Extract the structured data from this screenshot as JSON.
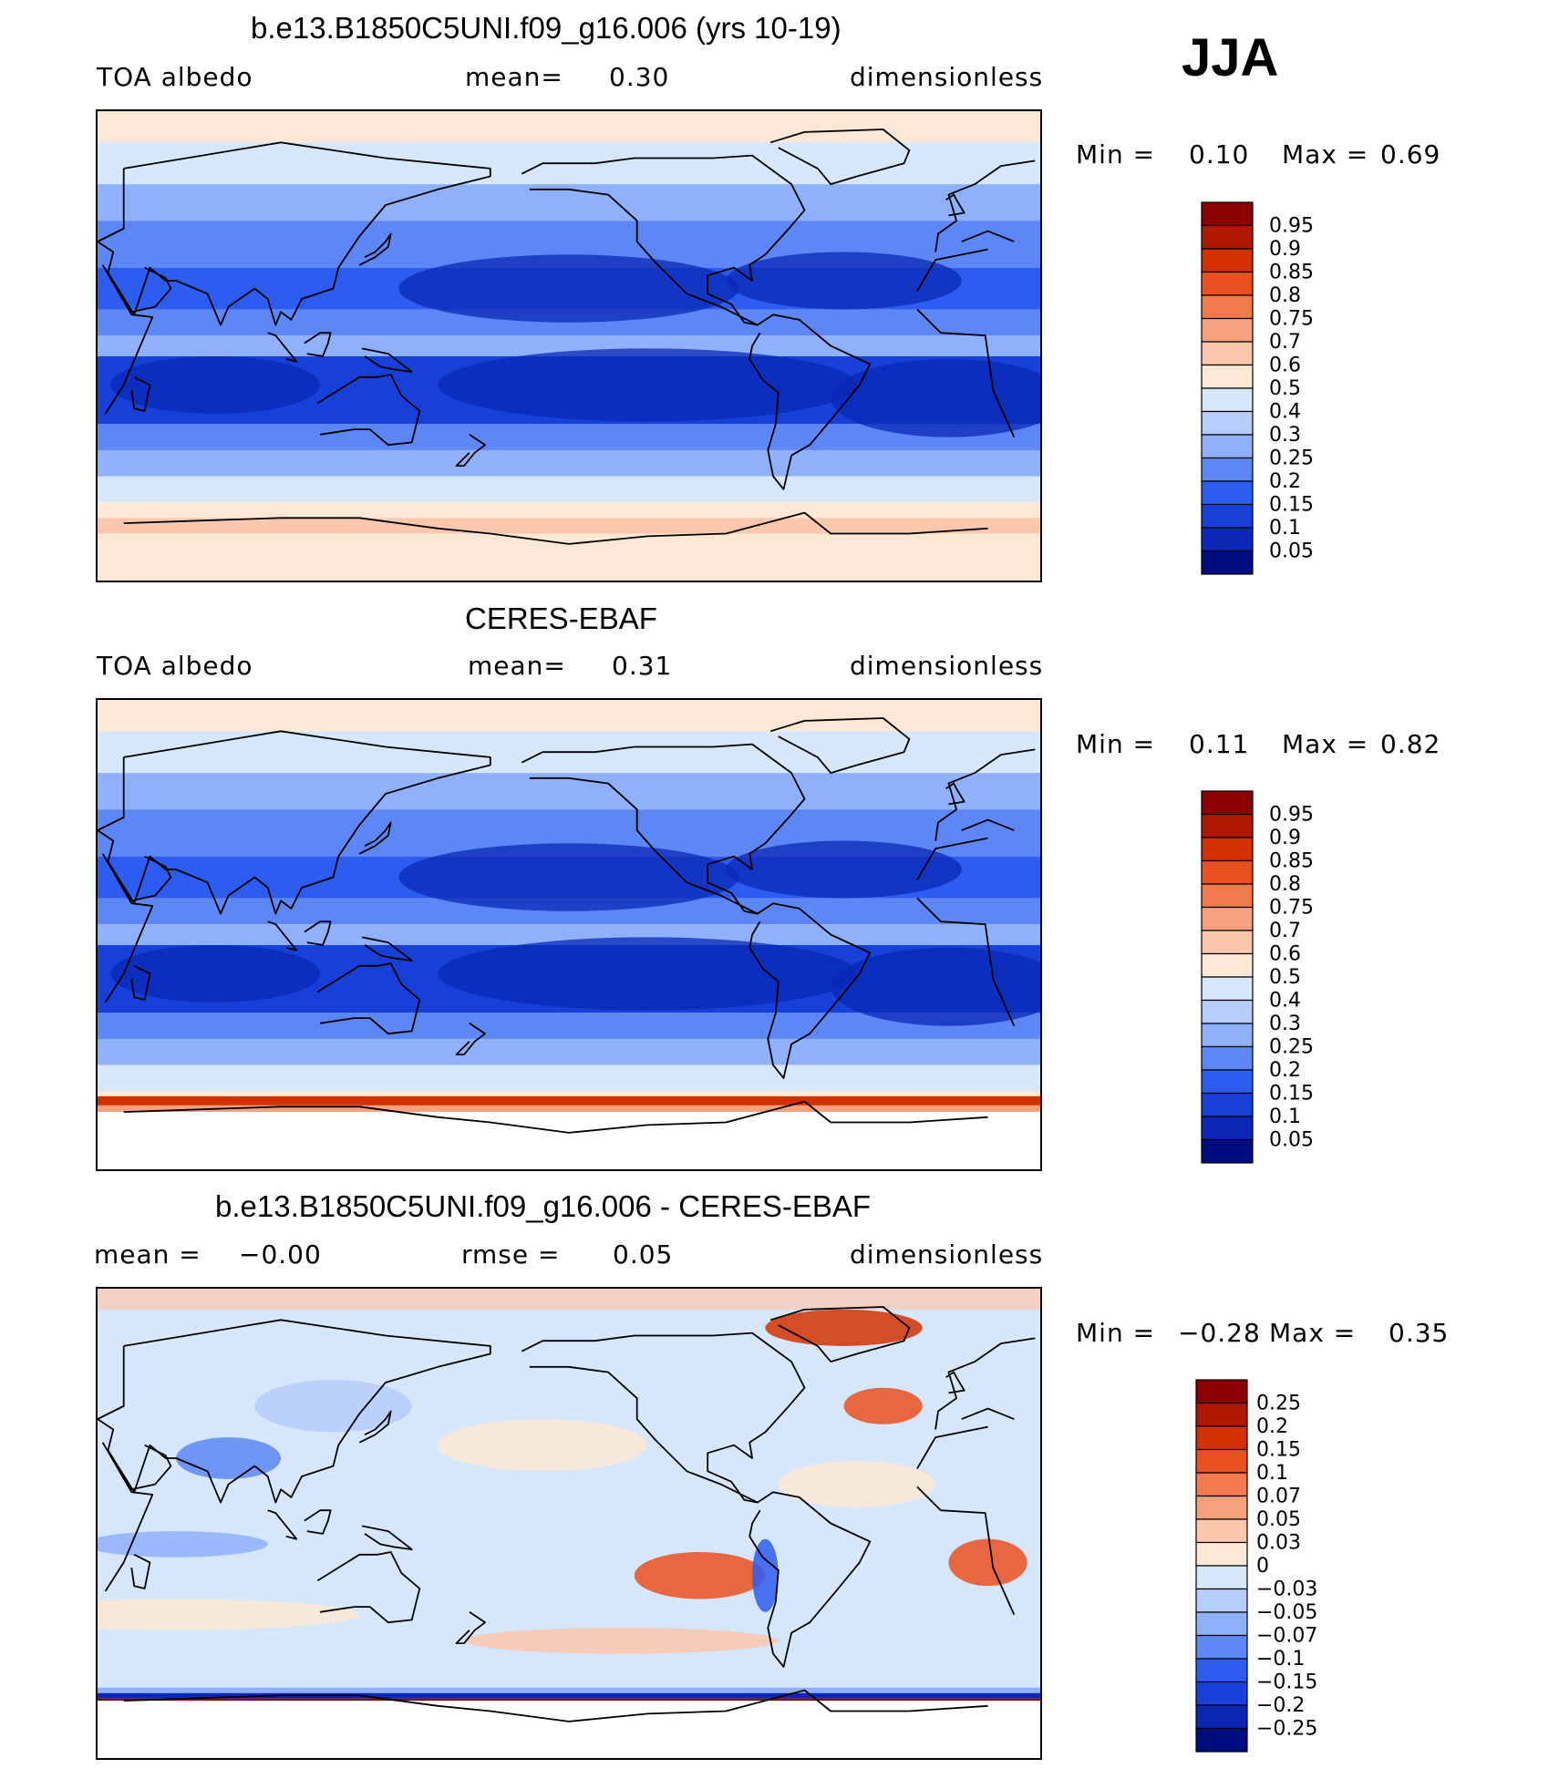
{
  "season": "JJA",
  "panels": [
    {
      "title": "b.e13.B1850C5UNI.f09_g16.006 (yrs 10-19)",
      "left_label": "TOA  albedo",
      "center_label": "mean=",
      "center_value": "0.30",
      "right_label": "dimensionless",
      "stats": {
        "min_label": "Min  =",
        "min_value": "0.10",
        "max_label": "Max  =",
        "max_value": "0.69"
      },
      "colorbar": {
        "labels": [
          "0.95",
          "0.9",
          "0.85",
          "0.8",
          "0.75",
          "0.7",
          "0.6",
          "0.5",
          "0.4",
          "0.3",
          "0.25",
          "0.2",
          "0.15",
          "0.1",
          "0.05"
        ],
        "colors": [
          "#8b0000",
          "#b01800",
          "#d43100",
          "#ea5020",
          "#f27a4e",
          "#f7a07e",
          "#fbc7ad",
          "#fde8d6",
          "#d6e6fb",
          "#b6cdfb",
          "#8fb0fb",
          "#5d86f6",
          "#2d5df0",
          "#1640d8",
          "#0a28b5",
          "#000d80"
        ]
      },
      "map": {
        "type": "mean",
        "south_pole_white": false,
        "antarctic_band": false
      }
    },
    {
      "title": "CERES-EBAF",
      "left_label": "TOA  albedo",
      "center_label": "mean=",
      "center_value": "0.31",
      "right_label": "dimensionless",
      "stats": {
        "min_label": "Min  =",
        "min_value": "0.11",
        "max_label": "Max  =",
        "max_value": "0.82"
      },
      "colorbar": {
        "labels": [
          "0.95",
          "0.9",
          "0.85",
          "0.8",
          "0.75",
          "0.7",
          "0.6",
          "0.5",
          "0.4",
          "0.3",
          "0.25",
          "0.2",
          "0.15",
          "0.1",
          "0.05"
        ],
        "colors": [
          "#8b0000",
          "#b01800",
          "#d43100",
          "#ea5020",
          "#f27a4e",
          "#f7a07e",
          "#fbc7ad",
          "#fde8d6",
          "#d6e6fb",
          "#b6cdfb",
          "#8fb0fb",
          "#5d86f6",
          "#2d5df0",
          "#1640d8",
          "#0a28b5",
          "#000d80"
        ]
      },
      "map": {
        "type": "mean",
        "south_pole_white": true,
        "antarctic_band": true
      }
    },
    {
      "title": "b.e13.B1850C5UNI.f09_g16.006 - CERES-EBAF",
      "left_label": "mean  =",
      "left_value": "−0.00",
      "center_label": "rmse  =",
      "center_value": "0.05",
      "right_label": "dimensionless",
      "stats": {
        "min_label": "Min  =",
        "min_value": "−0.28",
        "max_label": "Max  =",
        "max_value": "0.35"
      },
      "colorbar": {
        "labels": [
          "0.25",
          "0.2",
          "0.15",
          "0.1",
          "0.07",
          "0.05",
          "0.03",
          "0",
          "−0.03",
          "−0.05",
          "−0.07",
          "−0.1",
          "−0.15",
          "−0.2",
          "−0.25"
        ],
        "colors": [
          "#8b0000",
          "#b01800",
          "#d43100",
          "#ea5020",
          "#f27a4e",
          "#f7a07e",
          "#fbc7ad",
          "#fde8d6",
          "#d6e6fb",
          "#b6cdfb",
          "#8fb0fb",
          "#5d86f6",
          "#2d5df0",
          "#1640d8",
          "#0a28b5",
          "#000d80"
        ]
      },
      "map": {
        "type": "diff",
        "south_pole_white": true,
        "antarctic_band": true
      }
    }
  ]
}
